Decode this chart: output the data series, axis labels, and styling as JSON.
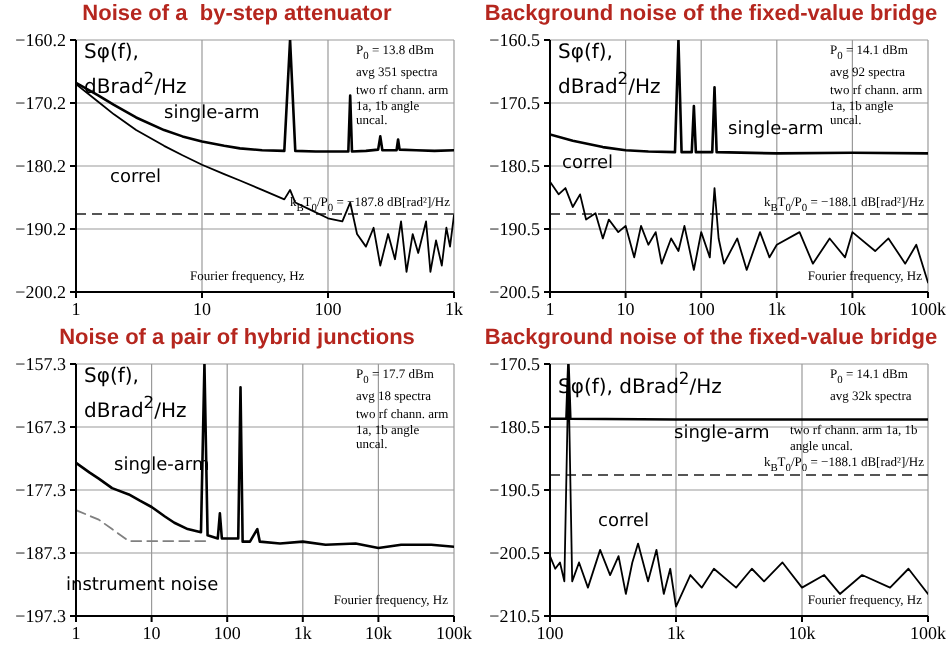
{
  "chart_data": [
    {
      "type": "line",
      "title": "Noise of a  by-step attenuator",
      "ylabel": "Sφ(f), dBrad$^{2}$/Hz",
      "log": "x",
      "grid": true,
      "legend": false,
      "marker": "none",
      "xlim": [
        1,
        1000
      ],
      "xticks": [
        1,
        10,
        100,
        {
          "value": 1000,
          "label": "1k"
        }
      ],
      "ylim": [
        -200.2,
        -160.2
      ],
      "yticks": [
        -200.2,
        -190.2,
        -180.2,
        -170.2,
        -160.2
      ],
      "annotations": [
        "P$_{0}$ = 13.8 dBm avg 351 spectra",
        "two rf chann. arm 1a, 1b angle uncal.",
        "Fourier frequency, Hz"
      ],
      "ref_lines": [
        {
          "axis": "y",
          "value": -187.8,
          "label": "k$_{B}$T$_{0}$/P$_{0}$ = −187.8 dB[rad²]/Hz",
          "color": "#555555",
          "line_style": "dashed"
        }
      ],
      "series": [
        {
          "name": "single-arm",
          "color": "#000000",
          "x": [
            1,
            1.5,
            2,
            3,
            5,
            7,
            10,
            15,
            20,
            30,
            45,
            50,
            55,
            80,
            100,
            145,
            150,
            155,
            200,
            250,
            260,
            270,
            350,
            360,
            370,
            500,
            700,
            1000
          ],
          "values": [
            -167,
            -169,
            -170.5,
            -172.5,
            -174.5,
            -175.5,
            -176.3,
            -177,
            -177.4,
            -177.7,
            -177.8,
            -160.2,
            -177.8,
            -177.9,
            -177.9,
            -177.9,
            -169,
            -177.9,
            -177.8,
            -177.6,
            -175.5,
            -177.7,
            -177.7,
            -176,
            -177.6,
            -177.7,
            -177.8,
            -177.7
          ]
        },
        {
          "name": "correl",
          "color": "#000000",
          "x": [
            1,
            1.5,
            2,
            3,
            5,
            7,
            10,
            15,
            20,
            30,
            45,
            50,
            55,
            70,
            100,
            130,
            150,
            170,
            200,
            230,
            260,
            300,
            340,
            380,
            420,
            470,
            520,
            600,
            650,
            720,
            800,
            870,
            930,
            1000
          ],
          "values": [
            -167.2,
            -170,
            -172,
            -174.5,
            -177,
            -178.5,
            -180,
            -181.5,
            -182.5,
            -184,
            -185.5,
            -184,
            -186,
            -187,
            -188.5,
            -189,
            -186,
            -191,
            -193,
            -190,
            -196,
            -191,
            -195,
            -189,
            -197,
            -191,
            -194,
            -189,
            -197,
            -192,
            -196,
            -190,
            -193,
            -188
          ]
        }
      ]
    },
    {
      "type": "line",
      "title": "Background noise of the fixed-value bridge",
      "ylabel": "Sφ(f), dBrad$^{2}$/Hz",
      "log": "x",
      "grid": true,
      "legend": false,
      "marker": "none",
      "xlim": [
        1,
        100000
      ],
      "xticks": [
        1,
        10,
        100,
        {
          "value": 1000,
          "label": "1k"
        },
        {
          "value": 10000,
          "label": "10k"
        },
        {
          "value": 100000,
          "label": "100k"
        }
      ],
      "ylim": [
        -200.5,
        -160.5
      ],
      "yticks": [
        -200.5,
        -190.5,
        -180.5,
        -170.5,
        -160.5
      ],
      "annotations": [
        "P$_{0}$ = 14.1 dBm avg 92 spectra",
        "two rf chann. arm 1a, 1b angle uncal.",
        "Fourier frequency, Hz"
      ],
      "ref_lines": [
        {
          "axis": "y",
          "value": -188.1,
          "label": "k$_{B}$T$_{0}$/P$_{0}$ = −188.1 dB[rad²]/Hz",
          "color": "#555555",
          "line_style": "dashed"
        }
      ],
      "series": [
        {
          "name": "single-arm",
          "color": "#000000",
          "x": [
            1,
            2,
            5,
            10,
            20,
            45,
            50,
            55,
            75,
            80,
            85,
            140,
            150,
            160,
            1000,
            10000,
            100000
          ],
          "values": [
            -175.5,
            -176.5,
            -177.5,
            -178,
            -178.2,
            -178.3,
            -160.5,
            -178.3,
            -178.3,
            -171,
            -178.3,
            -178.3,
            -168,
            -178.3,
            -178.5,
            -178.4,
            -178.5
          ]
        },
        {
          "name": "correl",
          "color": "#000000",
          "x": [
            1,
            1.3,
            1.6,
            2,
            2.5,
            3,
            4,
            5,
            6,
            8,
            10,
            13,
            16,
            20,
            25,
            30,
            40,
            50,
            60,
            80,
            100,
            130,
            150,
            170,
            200,
            300,
            400,
            600,
            800,
            1000,
            2000,
            3000,
            5000,
            8000,
            10000,
            20000,
            30000,
            50000,
            70000,
            100000
          ],
          "values": [
            -183,
            -185,
            -184,
            -187,
            -185,
            -189,
            -188,
            -192,
            -189,
            -191,
            -190,
            -195,
            -190,
            -193,
            -191,
            -196,
            -192,
            -194,
            -190,
            -197,
            -191,
            -195,
            -184,
            -192,
            -196,
            -192,
            -197,
            -191,
            -195,
            -193,
            -191,
            -196,
            -192,
            -195,
            -191,
            -194,
            -192,
            -196,
            -193,
            -199
          ]
        }
      ]
    },
    {
      "type": "line",
      "title": "Noise of a pair of hybrid junctions",
      "ylabel": "Sφ(f), dBrad$^{2}$/Hz",
      "log": "x",
      "grid": true,
      "legend": false,
      "marker": "none",
      "xlim": [
        1,
        100000
      ],
      "xticks": [
        1,
        10,
        100,
        {
          "value": 1000,
          "label": "1k"
        },
        {
          "value": 10000,
          "label": "10k"
        },
        {
          "value": 100000,
          "label": "100k"
        }
      ],
      "ylim": [
        -197.3,
        -157.3
      ],
      "yticks": [
        -197.3,
        -187.3,
        -177.3,
        -167.3,
        -157.3
      ],
      "annotations": [
        "P$_{0}$ = 17.7 dBm avg 18 spectra",
        "two rf chann. arm 1a, 1b angle uncal.",
        "Fourier frequency, Hz"
      ],
      "series": [
        {
          "name": "single-arm",
          "color": "#000000",
          "x": [
            1,
            1.5,
            2,
            3,
            5,
            7,
            10,
            15,
            20,
            30,
            45,
            50,
            55,
            75,
            80,
            85,
            140,
            150,
            160,
            200,
            250,
            270,
            500,
            1000,
            2000,
            5000,
            10000,
            20000,
            50000,
            100000
          ],
          "values": [
            -173,
            -174.5,
            -175.5,
            -177,
            -178,
            -179,
            -180,
            -181.5,
            -182.5,
            -183.5,
            -184,
            -157.3,
            -184.5,
            -185,
            -181,
            -185,
            -185,
            -161,
            -185.5,
            -185.5,
            -183.5,
            -185.5,
            -185.8,
            -185.5,
            -186,
            -185.8,
            -186.5,
            -186,
            -186,
            -186.3
          ]
        },
        {
          "name": "instrument noise",
          "color": "#808080",
          "line_style": "dashed",
          "x": [
            1,
            2,
            3,
            5,
            10,
            20,
            60
          ],
          "values": [
            -180.5,
            -182,
            -183.5,
            -185.4,
            -185.4,
            -185.4,
            -185.4
          ]
        }
      ]
    },
    {
      "type": "line",
      "title": "Background noise of the fixed-value bridge",
      "ylabel": "Sφ(f), dBrad$^{2}$/Hz",
      "log": "x",
      "grid": true,
      "legend": false,
      "marker": "none",
      "xlim": [
        100,
        100000
      ],
      "xticks": [
        100,
        {
          "value": 1000,
          "label": "1k"
        },
        {
          "value": 10000,
          "label": "10k"
        },
        {
          "value": 100000,
          "label": "100k"
        }
      ],
      "ylim": [
        -210.5,
        -170.5
      ],
      "yticks": [
        -210.5,
        -200.5,
        -190.5,
        -180.5,
        -170.5
      ],
      "annotations": [
        "P$_{0}$ = 14.1 dBm avg 32k spectra",
        "two rf chann. arm 1a, 1b angle uncal.",
        "Fourier frequency, Hz"
      ],
      "ref_lines": [
        {
          "axis": "y",
          "value": -188.1,
          "label": "k$_{B}$T$_{0}$/P$_{0}$ = −188.1 dB[rad²]/Hz",
          "color": "#555555",
          "line_style": "dashed"
        }
      ],
      "series": [
        {
          "name": "single-arm",
          "color": "#000000",
          "x": [
            100,
            135,
            140,
            145,
            1000,
            10000,
            100000
          ],
          "values": [
            -179.2,
            -179.2,
            -170.5,
            -179.2,
            -179.3,
            -179.3,
            -179.3
          ]
        },
        {
          "name": "correl",
          "color": "#000000",
          "x": [
            100,
            110,
            120,
            130,
            140,
            150,
            170,
            200,
            250,
            300,
            350,
            400,
            450,
            500,
            600,
            700,
            800,
            900,
            1000,
            1300,
            1600,
            2000,
            3000,
            4000,
            5000,
            7000,
            10000,
            15000,
            20000,
            30000,
            50000,
            70000,
            100000
          ],
          "values": [
            -201,
            -203,
            -202,
            -205,
            -172,
            -205,
            -202,
            -206,
            -200,
            -204,
            -201,
            -207,
            -202,
            -199,
            -205,
            -200,
            -207,
            -203,
            -209,
            -204,
            -206,
            -203,
            -206,
            -203,
            -205,
            -202,
            -206,
            -204,
            -207,
            -204,
            -206,
            -203,
            -207
          ]
        }
      ]
    }
  ]
}
